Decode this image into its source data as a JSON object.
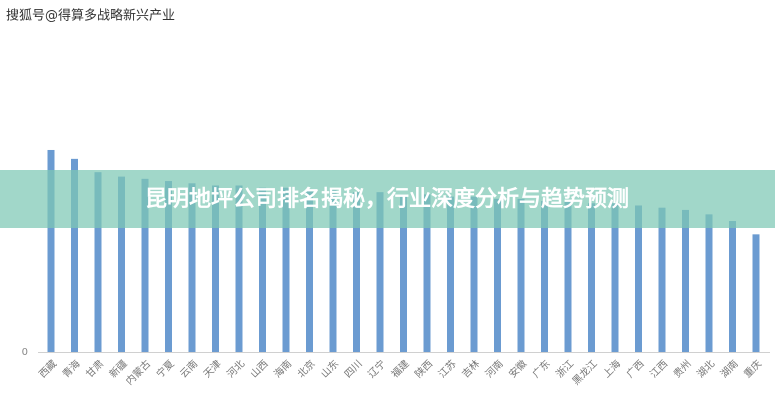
{
  "watermark": "搜狐号@得算多战略新兴产业",
  "banner": "昆明地坪公司排名揭秘，行业深度分析与趋势预测",
  "chart_data": {
    "type": "bar",
    "categories": [
      "西藏",
      "青海",
      "甘肃",
      "新疆",
      "内蒙古",
      "宁夏",
      "云南",
      "天津",
      "河北",
      "山西",
      "海南",
      "北京",
      "山东",
      "四川",
      "辽宁",
      "福建",
      "陕西",
      "江苏",
      "吉林",
      "河南",
      "安徽",
      "广东",
      "浙江",
      "黑龙江",
      "上海",
      "广西",
      "江西",
      "贵州",
      "湖北",
      "湖南",
      "重庆"
    ],
    "values": [
      91,
      87,
      81,
      79,
      78,
      77,
      76,
      75,
      75,
      74,
      74,
      73,
      73,
      72,
      72,
      71,
      71,
      70,
      70,
      69,
      69,
      68,
      68,
      67,
      67,
      66,
      65,
      64,
      62,
      59,
      53
    ],
    "color": "#6b9bd1",
    "ylim": [
      0,
      100
    ],
    "yticks": [
      0
    ],
    "grid": false
  }
}
